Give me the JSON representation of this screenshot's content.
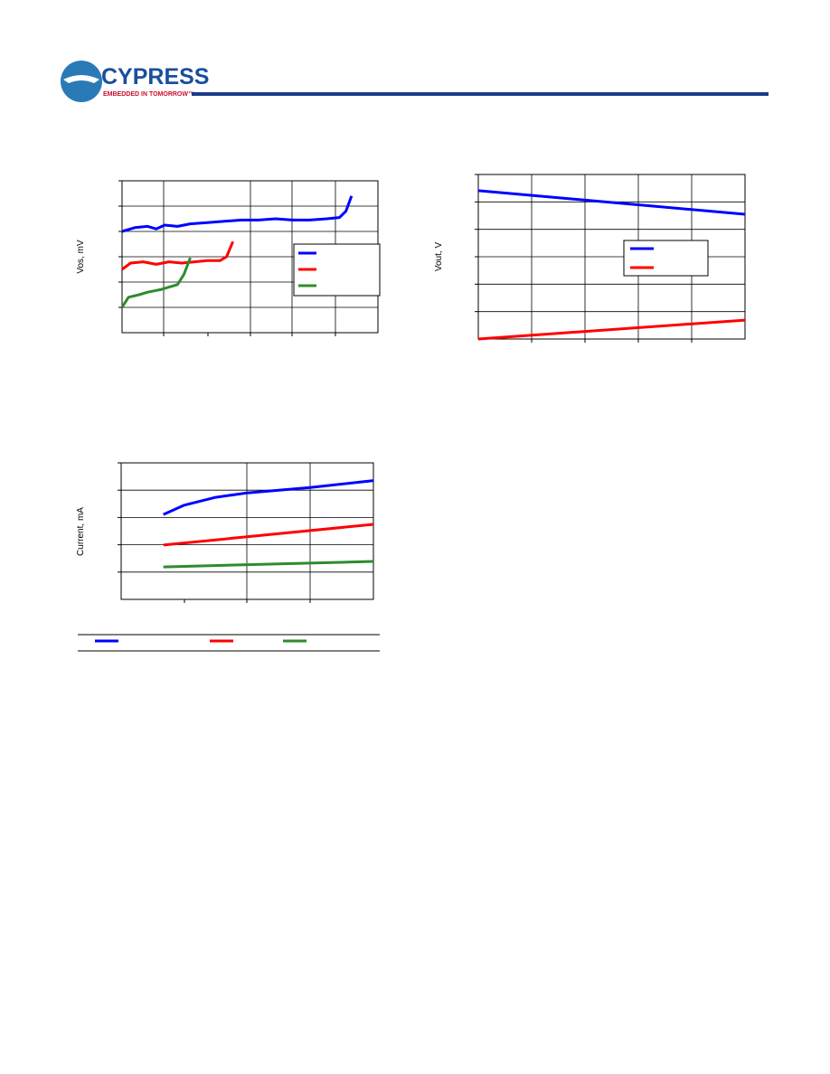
{
  "header": {
    "logo": "CYPRESS",
    "tagline": "EMBEDDED IN TOMORROW™"
  },
  "chart_data": [
    {
      "type": "line",
      "y_label": "Vos, mV",
      "xlim": [
        0,
        6
      ],
      "ylim": [
        0,
        6
      ],
      "series": [
        {
          "color": "#0000ff",
          "x": [
            0,
            0.3,
            0.6,
            0.8,
            1.0,
            1.3,
            1.6,
            2.0,
            2.4,
            2.8,
            3.2,
            3.6,
            4.0,
            4.4,
            4.8,
            5.1,
            5.25,
            5.38
          ],
          "values": [
            4.0,
            4.15,
            4.2,
            4.1,
            4.25,
            4.2,
            4.3,
            4.35,
            4.4,
            4.45,
            4.45,
            4.5,
            4.45,
            4.45,
            4.5,
            4.55,
            4.8,
            5.4
          ]
        },
        {
          "color": "#ff0000",
          "x": [
            0,
            0.2,
            0.5,
            0.8,
            1.1,
            1.4,
            1.7,
            2.0,
            2.3,
            2.45,
            2.6
          ],
          "values": [
            2.5,
            2.75,
            2.8,
            2.7,
            2.8,
            2.75,
            2.8,
            2.85,
            2.85,
            3.0,
            3.6
          ]
        },
        {
          "color": "#2e8b2e",
          "x": [
            0,
            0.15,
            0.4,
            0.6,
            0.9,
            1.1,
            1.3,
            1.45,
            1.6
          ],
          "values": [
            1.0,
            1.4,
            1.5,
            1.6,
            1.7,
            1.8,
            1.9,
            2.3,
            2.96
          ]
        }
      ]
    },
    {
      "type": "line",
      "y_label": "Vout, V",
      "xlim": [
        0,
        5
      ],
      "ylim": [
        0,
        6
      ],
      "series": [
        {
          "color": "#0000ff",
          "x": [
            0,
            5
          ],
          "values": [
            5.41,
            4.55
          ]
        },
        {
          "color": "#ff0000",
          "x": [
            0,
            5
          ],
          "values": [
            0,
            0.69
          ]
        }
      ]
    },
    {
      "type": "line",
      "y_label": "Current, mA",
      "xlim": [
        0,
        4
      ],
      "ylim": [
        0,
        5
      ],
      "series": [
        {
          "color": "#0000ff",
          "x": [
            0.67,
            1.0,
            1.5,
            2.0,
            3.0,
            4.0
          ],
          "values": [
            3.11,
            3.45,
            3.74,
            3.9,
            4.1,
            4.35
          ]
        },
        {
          "color": "#ff0000",
          "x": [
            0.67,
            4.0
          ],
          "values": [
            1.99,
            2.75
          ]
        },
        {
          "color": "#2e8b2e",
          "x": [
            0.67,
            4.0
          ],
          "values": [
            1.19,
            1.39
          ]
        }
      ]
    }
  ]
}
